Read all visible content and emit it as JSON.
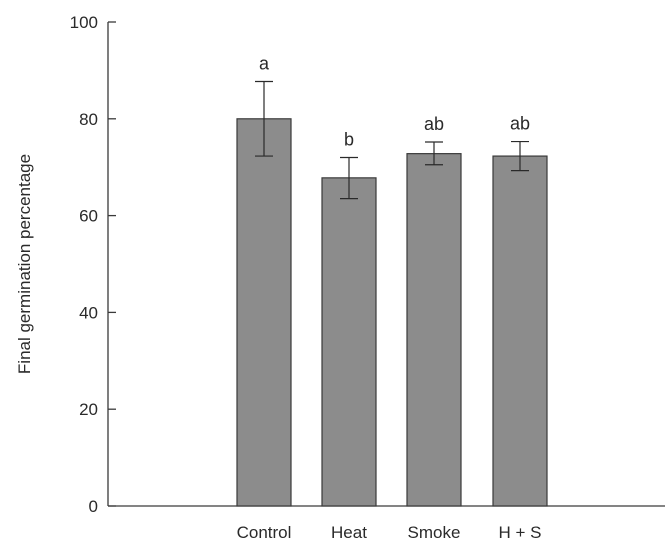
{
  "chart_data": {
    "type": "bar",
    "ylabel": "Final germination percentage",
    "xlabel": "",
    "ylim": [
      0,
      100
    ],
    "yticks": [
      0,
      20,
      40,
      60,
      80,
      100
    ],
    "grid": false,
    "bar_color": "#8c8c8c",
    "categories": [
      "Control",
      "Heat",
      "Smoke",
      "H + S"
    ],
    "values": [
      80.0,
      67.8,
      72.8,
      72.3
    ],
    "error_low": [
      72.3,
      63.5,
      70.5,
      69.3
    ],
    "error_high": [
      87.7,
      72.0,
      75.2,
      75.3
    ],
    "significance_letters": [
      "a",
      "b",
      "ab",
      "ab"
    ]
  }
}
